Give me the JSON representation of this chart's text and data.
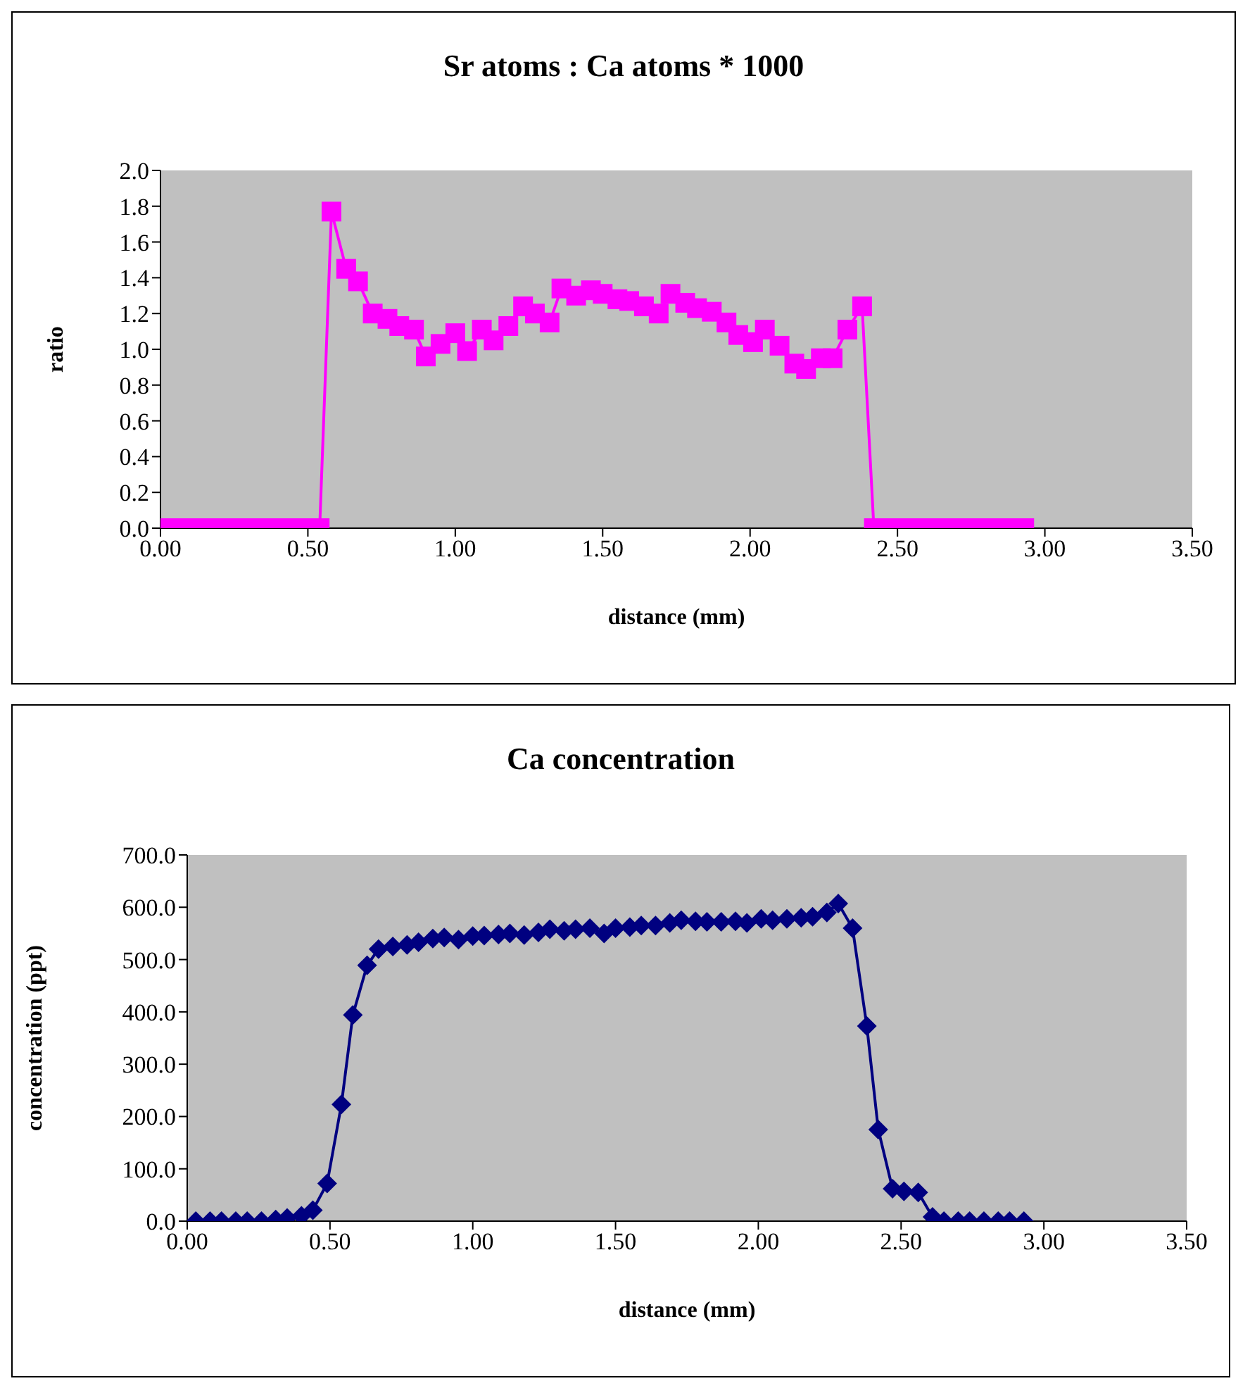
{
  "chart_data": [
    {
      "type": "line",
      "title": "Sr atoms : Ca atoms * 1000",
      "xlabel": "distance (mm)",
      "ylabel": "ratio",
      "marker": "square",
      "x": [
        0.03,
        0.08,
        0.12,
        0.17,
        0.21,
        0.26,
        0.31,
        0.35,
        0.4,
        0.44,
        0.49,
        0.54,
        0.58,
        0.63,
        0.67,
        0.72,
        0.77,
        0.81,
        0.86,
        0.9,
        0.95,
        1.0,
        1.04,
        1.09,
        1.13,
        1.18,
        1.23,
        1.27,
        1.32,
        1.36,
        1.41,
        1.46,
        1.5,
        1.55,
        1.59,
        1.64,
        1.69,
        1.73,
        1.78,
        1.82,
        1.87,
        1.92,
        1.96,
        2.01,
        2.05,
        2.1,
        2.15,
        2.19,
        2.24,
        2.28,
        2.33,
        2.38,
        2.42,
        2.47,
        2.51,
        2.56,
        2.61,
        2.65,
        2.7,
        2.74,
        2.79,
        2.84,
        2.88,
        2.93
      ],
      "series": [
        {
          "color": "#ff00ff",
          "values": [
            0,
            0,
            0,
            0,
            0,
            0,
            0,
            0,
            0,
            0,
            0,
            0,
            1.77,
            1.45,
            1.38,
            1.2,
            1.17,
            1.13,
            1.11,
            0.96,
            1.03,
            1.09,
            0.99,
            1.11,
            1.05,
            1.13,
            1.24,
            1.2,
            1.15,
            1.34,
            1.3,
            1.33,
            1.31,
            1.28,
            1.27,
            1.24,
            1.2,
            1.31,
            1.26,
            1.23,
            1.21,
            1.15,
            1.08,
            1.04,
            1.11,
            1.02,
            0.92,
            0.89,
            0.95,
            0.95,
            1.11,
            1.24,
            0,
            0,
            0,
            0,
            0,
            0,
            0,
            0,
            0,
            0,
            0,
            0
          ]
        }
      ],
      "xlim": [
        0,
        3.5
      ],
      "xticks": [
        {
          "value": 0,
          "label": "0.00"
        },
        {
          "value": 0.5,
          "label": "0.50"
        },
        {
          "value": 1,
          "label": "1.00"
        },
        {
          "value": 1.5,
          "label": "1.50"
        },
        {
          "value": 2,
          "label": "2.00"
        },
        {
          "value": 2.5,
          "label": "2.50"
        },
        {
          "value": 3,
          "label": "3.00"
        },
        {
          "value": 3.5,
          "label": "3.50"
        }
      ],
      "ylim": [
        0,
        2
      ],
      "yticks": [
        {
          "value": 0,
          "label": "0.0"
        },
        {
          "value": 0.2,
          "label": "0.2"
        },
        {
          "value": 0.4,
          "label": "0.4"
        },
        {
          "value": 0.6,
          "label": "0.6"
        },
        {
          "value": 0.8,
          "label": "0.8"
        },
        {
          "value": 1,
          "label": "1.0"
        },
        {
          "value": 1.2,
          "label": "1.2"
        },
        {
          "value": 1.4,
          "label": "1.4"
        },
        {
          "value": 1.6,
          "label": "1.6"
        },
        {
          "value": 1.8,
          "label": "1.8"
        },
        {
          "value": 2,
          "label": "2.0"
        }
      ]
    },
    {
      "type": "line",
      "title": "Ca concentration",
      "xlabel": "distance (mm)",
      "ylabel": "concentration (ppt)",
      "marker": "diamond",
      "x": [
        0.03,
        0.08,
        0.12,
        0.17,
        0.21,
        0.26,
        0.31,
        0.35,
        0.4,
        0.44,
        0.49,
        0.54,
        0.58,
        0.63,
        0.67,
        0.72,
        0.77,
        0.81,
        0.86,
        0.9,
        0.95,
        1.0,
        1.04,
        1.09,
        1.13,
        1.18,
        1.23,
        1.27,
        1.32,
        1.36,
        1.41,
        1.46,
        1.5,
        1.55,
        1.59,
        1.64,
        1.69,
        1.73,
        1.78,
        1.82,
        1.87,
        1.92,
        1.96,
        2.01,
        2.05,
        2.1,
        2.15,
        2.19,
        2.24,
        2.28,
        2.33,
        2.38,
        2.42,
        2.47,
        2.51,
        2.56,
        2.61,
        2.65,
        2.7,
        2.74,
        2.79,
        2.84,
        2.88,
        2.93
      ],
      "series": [
        {
          "color": "#000080",
          "values": [
            0,
            0,
            0,
            0,
            0,
            0,
            3,
            6,
            10,
            21,
            72,
            223,
            394,
            489,
            520,
            525,
            528,
            533,
            540,
            542,
            538,
            545,
            546,
            548,
            550,
            547,
            552,
            558,
            555,
            558,
            560,
            550,
            560,
            562,
            565,
            565,
            570,
            575,
            573,
            572,
            572,
            573,
            570,
            578,
            575,
            578,
            580,
            582,
            590,
            607,
            560,
            373,
            175,
            62,
            57,
            55,
            8,
            0,
            0,
            0,
            0,
            0,
            0,
            0
          ]
        }
      ],
      "xlim": [
        0,
        3.5
      ],
      "xticks": [
        {
          "value": 0,
          "label": "0.00"
        },
        {
          "value": 0.5,
          "label": "0.50"
        },
        {
          "value": 1,
          "label": "1.00"
        },
        {
          "value": 1.5,
          "label": "1.50"
        },
        {
          "value": 2,
          "label": "2.00"
        },
        {
          "value": 2.5,
          "label": "2.50"
        },
        {
          "value": 3,
          "label": "3.00"
        },
        {
          "value": 3.5,
          "label": "3.50"
        }
      ],
      "ylim": [
        0,
        700
      ],
      "yticks": [
        {
          "value": 0,
          "label": "0.0"
        },
        {
          "value": 100,
          "label": "100.0"
        },
        {
          "value": 200,
          "label": "200.0"
        },
        {
          "value": 300,
          "label": "300.0"
        },
        {
          "value": 400,
          "label": "400.0"
        },
        {
          "value": 500,
          "label": "500.0"
        },
        {
          "value": 600,
          "label": "600.0"
        },
        {
          "value": 700,
          "label": "700.0"
        }
      ]
    }
  ]
}
